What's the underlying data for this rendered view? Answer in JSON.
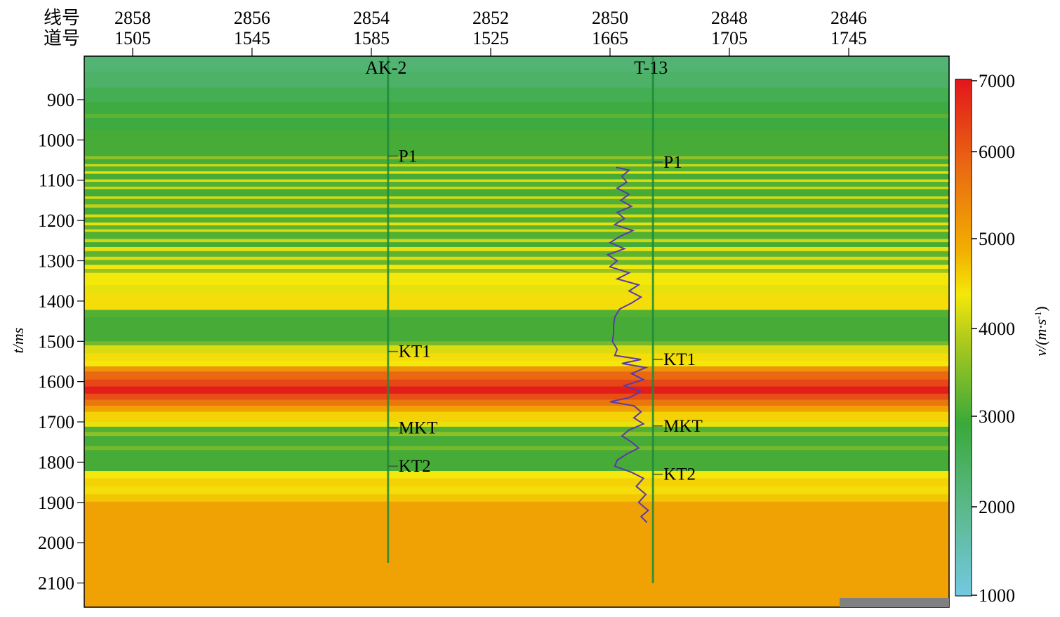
{
  "chart_data": {
    "type": "heatmap",
    "title": "",
    "top_axis": {
      "row_labels": [
        "线号",
        "道号"
      ],
      "ticks": [
        {
          "line": "2858",
          "trace": "1505"
        },
        {
          "line": "2856",
          "trace": "1545"
        },
        {
          "line": "2854",
          "trace": "1585"
        },
        {
          "line": "2852",
          "trace": "1525"
        },
        {
          "line": "2850",
          "trace": "1665"
        },
        {
          "line": "2848",
          "trace": "1705"
        },
        {
          "line": "2846",
          "trace": "1745"
        }
      ]
    },
    "ylabel": "t/ms",
    "ylim": [
      792,
      2160
    ],
    "yticks": [
      "900",
      "1000",
      "1100",
      "1200",
      "1300",
      "1400",
      "1500",
      "1600",
      "1700",
      "1800",
      "1900",
      "2000",
      "2100"
    ],
    "colorbar": {
      "label": "v/(m·s-1)",
      "label_main": "v/(m·s",
      "label_sup": "-1",
      "label_end": ")",
      "range": [
        1000,
        7000
      ],
      "ticks": [
        "1000",
        "2000",
        "3000",
        "4000",
        "5000",
        "6000",
        "7000"
      ],
      "stops": [
        {
          "v": 1000,
          "color": "#72c8e2"
        },
        {
          "v": 2000,
          "color": "#5cb98c"
        },
        {
          "v": 3000,
          "color": "#3aa93a"
        },
        {
          "v": 4000,
          "color": "#b2cb1c"
        },
        {
          "v": 4500,
          "color": "#f4e80a"
        },
        {
          "v": 5000,
          "color": "#f2b000"
        },
        {
          "v": 6000,
          "color": "#ea6812"
        },
        {
          "v": 7000,
          "color": "#e2161b"
        }
      ]
    },
    "velocity_layers": [
      [
        792,
        830,
        2300
      ],
      [
        830,
        870,
        2450
      ],
      [
        870,
        905,
        2700
      ],
      [
        905,
        935,
        2900
      ],
      [
        935,
        945,
        3300
      ],
      [
        945,
        975,
        2900
      ],
      [
        975,
        1040,
        3100
      ],
      [
        1040,
        1048,
        3700
      ],
      [
        1048,
        1060,
        3100
      ],
      [
        1060,
        1066,
        4200
      ],
      [
        1066,
        1078,
        3200
      ],
      [
        1078,
        1084,
        4400
      ],
      [
        1084,
        1098,
        3100
      ],
      [
        1098,
        1104,
        4300
      ],
      [
        1104,
        1116,
        3200
      ],
      [
        1116,
        1122,
        4200
      ],
      [
        1122,
        1140,
        3100
      ],
      [
        1140,
        1146,
        4300
      ],
      [
        1146,
        1160,
        3200
      ],
      [
        1160,
        1168,
        4100
      ],
      [
        1168,
        1185,
        3100
      ],
      [
        1185,
        1192,
        4300
      ],
      [
        1192,
        1205,
        3200
      ],
      [
        1205,
        1212,
        4400
      ],
      [
        1212,
        1222,
        3300
      ],
      [
        1222,
        1228,
        4300
      ],
      [
        1228,
        1246,
        3200
      ],
      [
        1246,
        1254,
        4200
      ],
      [
        1254,
        1266,
        3100
      ],
      [
        1266,
        1276,
        4400
      ],
      [
        1276,
        1290,
        3300
      ],
      [
        1290,
        1298,
        4300
      ],
      [
        1298,
        1310,
        3400
      ],
      [
        1310,
        1320,
        4500
      ],
      [
        1320,
        1330,
        3800
      ],
      [
        1330,
        1360,
        4500
      ],
      [
        1360,
        1380,
        4400
      ],
      [
        1380,
        1422,
        4600
      ],
      [
        1422,
        1440,
        3200
      ],
      [
        1440,
        1500,
        3100
      ],
      [
        1500,
        1510,
        3500
      ],
      [
        1510,
        1530,
        4300
      ],
      [
        1530,
        1548,
        4600
      ],
      [
        1548,
        1562,
        4500
      ],
      [
        1562,
        1575,
        5400
      ],
      [
        1575,
        1595,
        6000
      ],
      [
        1595,
        1612,
        6400
      ],
      [
        1612,
        1630,
        6900
      ],
      [
        1630,
        1645,
        6300
      ],
      [
        1645,
        1660,
        5800
      ],
      [
        1660,
        1675,
        5200
      ],
      [
        1675,
        1700,
        4700
      ],
      [
        1700,
        1712,
        4400
      ],
      [
        1712,
        1725,
        3200
      ],
      [
        1725,
        1735,
        3700
      ],
      [
        1735,
        1760,
        3100
      ],
      [
        1760,
        1770,
        3500
      ],
      [
        1770,
        1822,
        3100
      ],
      [
        1822,
        1840,
        4500
      ],
      [
        1840,
        1860,
        4700
      ],
      [
        1860,
        1880,
        4600
      ],
      [
        1880,
        1898,
        4800
      ],
      [
        1898,
        2160,
        5200
      ]
    ],
    "wells": [
      {
        "name": "AK-2",
        "position": 2.14,
        "t_end": 2050,
        "horizons": [
          {
            "name": "P1",
            "t": 1040
          },
          {
            "name": "KT1",
            "t": 1525
          },
          {
            "name": "MKT",
            "t": 1715
          },
          {
            "name": "KT2",
            "t": 1810
          }
        ]
      },
      {
        "name": "T-13",
        "position": 4.36,
        "t_end": 2100,
        "horizons": [
          {
            "name": "P1",
            "t": 1055
          },
          {
            "name": "KT1",
            "t": 1545
          },
          {
            "name": "MKT",
            "t": 1710
          },
          {
            "name": "KT2",
            "t": 1830
          }
        ]
      }
    ],
    "well_log": {
      "well": "T-13",
      "color": "#5a3aa8",
      "points": [
        [
          1068,
          -0.31
        ],
        [
          1075,
          -0.2
        ],
        [
          1090,
          -0.26
        ],
        [
          1105,
          -0.22
        ],
        [
          1120,
          -0.3
        ],
        [
          1135,
          -0.2
        ],
        [
          1150,
          -0.27
        ],
        [
          1165,
          -0.18
        ],
        [
          1180,
          -0.3
        ],
        [
          1195,
          -0.24
        ],
        [
          1210,
          -0.32
        ],
        [
          1225,
          -0.17
        ],
        [
          1240,
          -0.28
        ],
        [
          1255,
          -0.36
        ],
        [
          1270,
          -0.24
        ],
        [
          1285,
          -0.38
        ],
        [
          1300,
          -0.3
        ],
        [
          1315,
          -0.36
        ],
        [
          1330,
          -0.2
        ],
        [
          1345,
          -0.3
        ],
        [
          1360,
          -0.12
        ],
        [
          1375,
          -0.2
        ],
        [
          1390,
          -0.1
        ],
        [
          1405,
          -0.18
        ],
        [
          1420,
          -0.28
        ],
        [
          1440,
          -0.32
        ],
        [
          1460,
          -0.33
        ],
        [
          1480,
          -0.33
        ],
        [
          1500,
          -0.34
        ],
        [
          1520,
          -0.3
        ],
        [
          1535,
          -0.32
        ],
        [
          1545,
          -0.1
        ],
        [
          1555,
          -0.26
        ],
        [
          1565,
          -0.06
        ],
        [
          1580,
          -0.18
        ],
        [
          1595,
          -0.08
        ],
        [
          1610,
          -0.24
        ],
        [
          1625,
          -0.1
        ],
        [
          1640,
          -0.2
        ],
        [
          1650,
          -0.36
        ],
        [
          1660,
          -0.16
        ],
        [
          1675,
          -0.1
        ],
        [
          1690,
          -0.16
        ],
        [
          1705,
          -0.08
        ],
        [
          1720,
          -0.2
        ],
        [
          1735,
          -0.26
        ],
        [
          1750,
          -0.18
        ],
        [
          1765,
          -0.12
        ],
        [
          1780,
          -0.22
        ],
        [
          1795,
          -0.3
        ],
        [
          1810,
          -0.32
        ],
        [
          1825,
          -0.18
        ],
        [
          1840,
          -0.08
        ],
        [
          1860,
          -0.14
        ],
        [
          1880,
          -0.06
        ],
        [
          1900,
          -0.12
        ],
        [
          1920,
          -0.04
        ],
        [
          1935,
          -0.1
        ],
        [
          1950,
          -0.05
        ]
      ]
    }
  }
}
